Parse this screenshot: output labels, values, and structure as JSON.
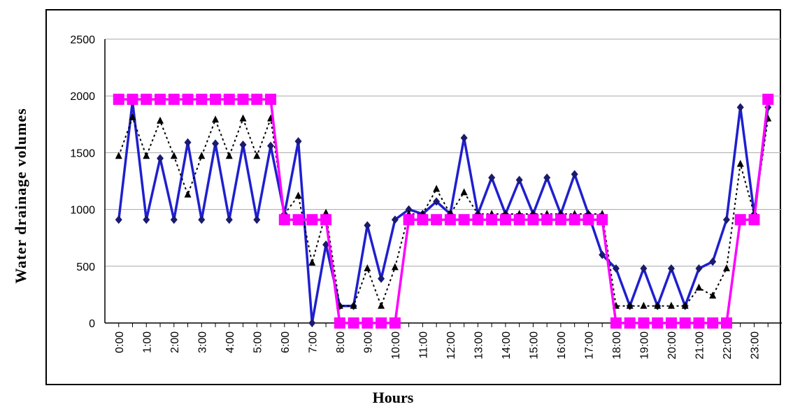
{
  "chart_data": {
    "type": "line",
    "title": "",
    "xlabel": "Hours",
    "ylabel": "Water drainage volumes",
    "ylim": [
      0,
      2500
    ],
    "yticks": [
      0,
      500,
      1000,
      1500,
      2000,
      2500
    ],
    "grid": "horizontal",
    "x": [
      0,
      0.5,
      1,
      1.5,
      2,
      2.5,
      3,
      3.5,
      4,
      4.5,
      5,
      5.5,
      6,
      6.5,
      7,
      7.5,
      8,
      8.5,
      9,
      9.5,
      10,
      10.5,
      11,
      11.5,
      12,
      12.5,
      13,
      13.5,
      14,
      14.5,
      15,
      15.5,
      16,
      16.5,
      17,
      17.5,
      18,
      18.5,
      19,
      19.5,
      20,
      20.5,
      21,
      21.5,
      22,
      22.5,
      23,
      23.5
    ],
    "x_tick_labels": [
      "0:00",
      "1:00",
      "2:00",
      "3:00",
      "4:00",
      "5:00",
      "6:00",
      "7:00",
      "8:00",
      "9:00",
      "10:00",
      "11:00",
      "12:00",
      "13:00",
      "14:00",
      "15:00",
      "16:00",
      "17:00",
      "18:00",
      "19:00",
      "20:00",
      "21:00",
      "22:00",
      "23:00"
    ],
    "series": [
      {
        "color": "#1f1fd0",
        "marker": "diamond",
        "style": "solid",
        "values": [
          910,
          1950,
          910,
          1450,
          910,
          1590,
          910,
          1580,
          910,
          1570,
          910,
          1560,
          960,
          1600,
          0,
          690,
          150,
          150,
          860,
          390,
          910,
          1000,
          960,
          1070,
          960,
          1630,
          960,
          1280,
          960,
          1260,
          960,
          1280,
          960,
          1310,
          960,
          600,
          480,
          150,
          480,
          150,
          480,
          150,
          480,
          540,
          910,
          1900,
          960,
          1900
        ]
      },
      {
        "color": "#000000",
        "marker": "triangle",
        "style": "dotted",
        "values": [
          1470,
          1810,
          1470,
          1780,
          1470,
          1130,
          1470,
          1790,
          1470,
          1800,
          1470,
          1800,
          960,
          1120,
          530,
          970,
          150,
          150,
          480,
          150,
          490,
          960,
          960,
          1180,
          960,
          1150,
          960,
          960,
          960,
          960,
          960,
          960,
          960,
          960,
          960,
          960,
          150,
          150,
          150,
          150,
          150,
          150,
          310,
          240,
          480,
          1400,
          960,
          1800
        ]
      },
      {
        "color": "#ff00ff",
        "marker": "square",
        "style": "solid",
        "values": [
          1970,
          1970,
          1970,
          1970,
          1970,
          1970,
          1970,
          1970,
          1970,
          1970,
          1970,
          1970,
          910,
          910,
          910,
          910,
          0,
          0,
          0,
          0,
          0,
          910,
          910,
          910,
          910,
          910,
          910,
          910,
          910,
          910,
          910,
          910,
          910,
          910,
          910,
          910,
          0,
          0,
          0,
          0,
          0,
          0,
          0,
          0,
          0,
          910,
          910,
          1970
        ]
      }
    ]
  }
}
